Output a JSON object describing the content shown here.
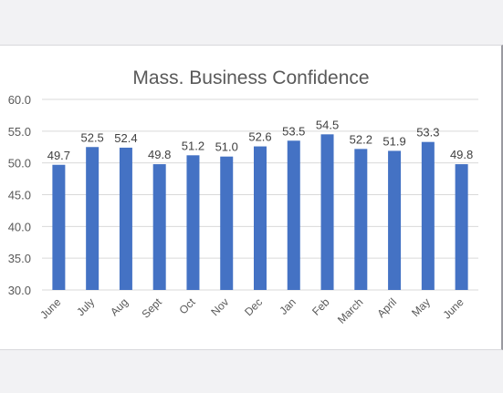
{
  "chart_data": {
    "type": "bar",
    "title": "Mass. Business Confidence",
    "xlabel": "",
    "ylabel": "",
    "ylim": [
      30.0,
      60.0
    ],
    "yticks": [
      "30.0",
      "35.0",
      "40.0",
      "45.0",
      "50.0",
      "55.0",
      "60.0"
    ],
    "grid": true,
    "legend": "none",
    "bar_color": "#4472c4",
    "categories": [
      "June",
      "July",
      "Aug",
      "Sept",
      "Oct",
      "Nov",
      "Dec",
      "Jan",
      "Feb",
      "March",
      "April",
      "May",
      "June"
    ],
    "values": [
      49.7,
      52.5,
      52.4,
      49.8,
      51.2,
      51.0,
      52.6,
      53.5,
      54.5,
      52.2,
      51.9,
      53.3,
      49.8
    ],
    "labels": [
      "49.7",
      "52.5",
      "52.4",
      "49.8",
      "51.2",
      "51.0",
      "52.6",
      "53.5",
      "54.5",
      "52.2",
      "51.9",
      "53.3",
      "49.8"
    ]
  }
}
